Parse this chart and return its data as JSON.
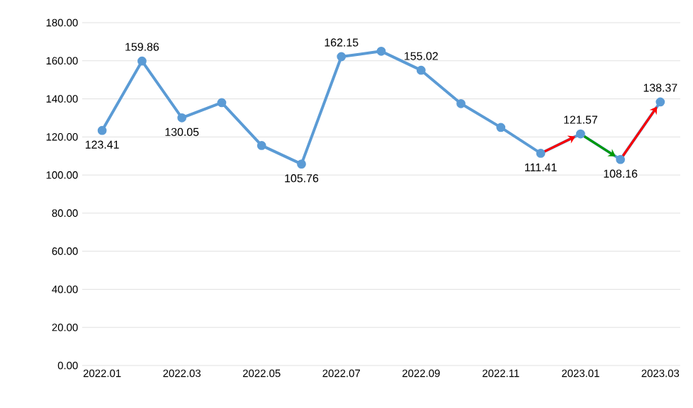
{
  "chart_data": {
    "type": "line",
    "categories": [
      "2022.01",
      null,
      "2022.03",
      null,
      "2022.05",
      null,
      "2022.07",
      null,
      "2022.09",
      null,
      "2022.11",
      null,
      "2023.01",
      null,
      "2023.03"
    ],
    "series": [
      {
        "color": "#5b9bd5",
        "values": [
          123.41,
          159.86,
          130.05,
          138,
          115.5,
          105.76,
          162.15,
          165,
          155.02,
          137.5,
          125,
          111.41,
          121.57,
          108.16,
          138.37
        ],
        "value_labels": [
          "123.41",
          "159.86",
          "130.05",
          null,
          null,
          "105.76",
          "162.15",
          null,
          "155.02",
          null,
          null,
          "111.41",
          "121.57",
          "108.16",
          "138.37"
        ]
      }
    ],
    "ylim": [
      0,
      180
    ],
    "yticks": [
      {
        "value": 0,
        "label": "0.00"
      },
      {
        "value": 20,
        "label": "20.00"
      },
      {
        "value": 40,
        "label": "40.00"
      },
      {
        "value": 60,
        "label": "60.00"
      },
      {
        "value": 80,
        "label": "80.00"
      },
      {
        "value": 100,
        "label": "100.00"
      },
      {
        "value": 120,
        "label": "120.00"
      },
      {
        "value": 140,
        "label": "140.00"
      },
      {
        "value": 160,
        "label": "160.00"
      },
      {
        "value": 180,
        "label": "180.00"
      }
    ],
    "grid": "y",
    "marker": "circle",
    "line_style": "solid"
  }
}
